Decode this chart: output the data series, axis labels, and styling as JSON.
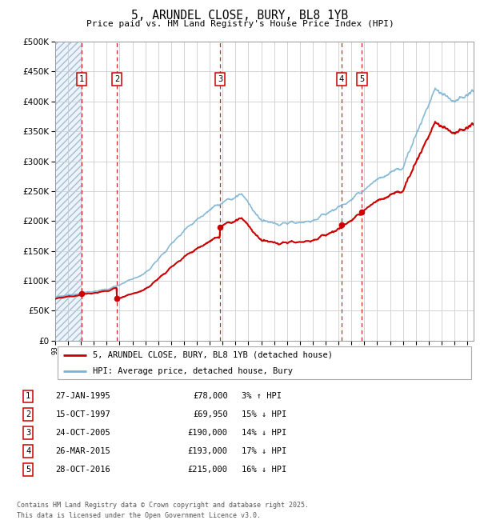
{
  "title": "5, ARUNDEL CLOSE, BURY, BL8 1YB",
  "subtitle": "Price paid vs. HM Land Registry's House Price Index (HPI)",
  "transactions": [
    {
      "num": 1,
      "date": "27-JAN-1995",
      "price": 78000,
      "hpi_pct": "3%",
      "direction": "↑"
    },
    {
      "num": 2,
      "date": "15-OCT-1997",
      "price": 69950,
      "hpi_pct": "15%",
      "direction": "↓"
    },
    {
      "num": 3,
      "date": "24-OCT-2005",
      "price": 190000,
      "hpi_pct": "14%",
      "direction": "↓"
    },
    {
      "num": 4,
      "date": "26-MAR-2015",
      "price": 193000,
      "hpi_pct": "17%",
      "direction": "↓"
    },
    {
      "num": 5,
      "date": "28-OCT-2016",
      "price": 215000,
      "hpi_pct": "16%",
      "direction": "↓"
    }
  ],
  "transaction_years": [
    1995.07,
    1997.79,
    2005.81,
    2015.23,
    2016.82
  ],
  "transaction_prices": [
    78000,
    69950,
    190000,
    193000,
    215000
  ],
  "ylim": [
    0,
    500000
  ],
  "yticks": [
    0,
    50000,
    100000,
    150000,
    200000,
    250000,
    300000,
    350000,
    400000,
    450000,
    500000
  ],
  "xlim_start": 1993.0,
  "xlim_end": 2025.5,
  "hpi_color": "#7ab3d4",
  "price_color": "#cc0000",
  "dashed_color": "#cc0000",
  "grid_color": "#cccccc",
  "legend_line1": "5, ARUNDEL CLOSE, BURY, BL8 1YB (detached house)",
  "legend_line2": "HPI: Average price, detached house, Bury",
  "footer": "Contains HM Land Registry data © Crown copyright and database right 2025.\nThis data is licensed under the Open Government Licence v3.0."
}
